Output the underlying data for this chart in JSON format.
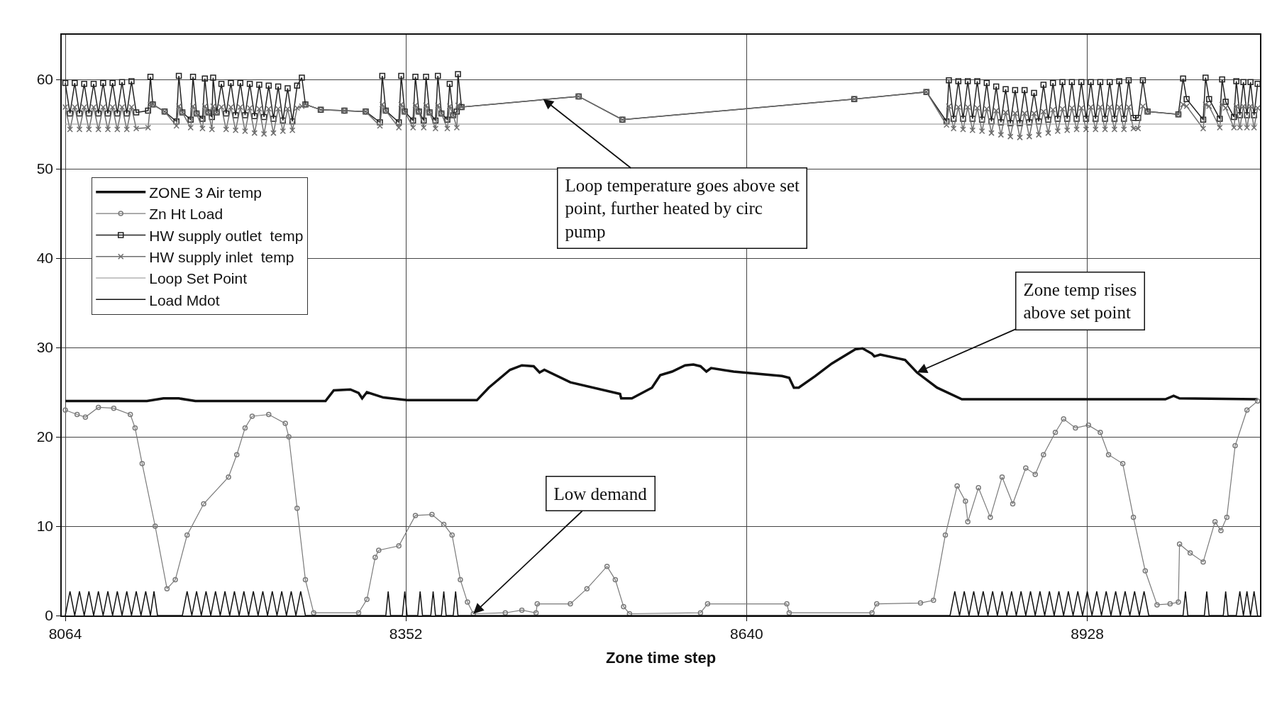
{
  "chart_data": {
    "type": "line",
    "xlabel": "Zone time step",
    "xlim": [
      8061,
      9074
    ],
    "xticks": [
      8064,
      8352,
      8640,
      8928
    ],
    "ylim": [
      0,
      65
    ],
    "yticks": [
      0,
      10,
      20,
      30,
      40,
      50,
      60
    ],
    "grid": true,
    "legend": "top left",
    "line_style": "solid",
    "annotations": [
      {
        "text": "Loop temperature goes above set point, further heated by circ pump",
        "x": 8468,
        "y": 57.8
      },
      {
        "text": "Zone temp rises above set point",
        "x": 8784,
        "y": 27.2
      },
      {
        "text": "Low demand",
        "x": 8409,
        "y": 0.2
      }
    ],
    "series": [
      {
        "name": "ZONE 3 Air temp",
        "color": "#111111",
        "marker": "none",
        "x": [
          8064,
          8133,
          8147,
          8160,
          8174,
          8284,
          8291,
          8305,
          8312,
          8315,
          8319,
          8333,
          8353,
          8412,
          8422,
          8440,
          8450,
          8460,
          8465,
          8469,
          8491,
          8533,
          8534,
          8543,
          8560,
          8567,
          8577,
          8588,
          8595,
          8601,
          8606,
          8610,
          8629,
          8670,
          8676,
          8680,
          8684,
          8698,
          8712,
          8732,
          8738,
          8746,
          8748,
          8753,
          8774,
          8784,
          8801,
          8822,
          8994,
          9001,
          9006,
          9072
        ],
        "values": [
          24,
          24,
          24.3,
          24.3,
          24,
          24,
          25.2,
          25.3,
          24.9,
          24.3,
          25,
          24.4,
          24.1,
          24.1,
          25.5,
          27.5,
          28,
          27.9,
          27.2,
          27.5,
          26.1,
          24.8,
          24.3,
          24.3,
          25.5,
          26.9,
          27.3,
          28,
          28.1,
          27.9,
          27.3,
          27.7,
          27.3,
          26.8,
          26.6,
          25.5,
          25.5,
          26.8,
          28.2,
          29.8,
          29.9,
          29.3,
          29,
          29.2,
          28.6,
          27.2,
          25.5,
          24.2,
          24.2,
          24.6,
          24.3,
          24.2
        ]
      },
      {
        "name": "Zn Ht Load",
        "color": "#7a7a7a",
        "marker": "circle",
        "x": [
          8064,
          8074,
          8081,
          8092,
          8105,
          8119,
          8123,
          8129,
          8140,
          8150,
          8157,
          8167,
          8181,
          8202,
          8209,
          8216,
          8222,
          8236,
          8250,
          8253,
          8260,
          8267,
          8274,
          8312,
          8319,
          8326,
          8329,
          8346,
          8360,
          8374,
          8384,
          8391,
          8398,
          8404,
          8409,
          8436,
          8450,
          8462,
          8463,
          8491,
          8505,
          8522,
          8529,
          8536,
          8541,
          8601,
          8607,
          8674,
          8676,
          8746,
          8750,
          8787,
          8798,
          8808,
          8818,
          8825,
          8827,
          8836,
          8846,
          8856,
          8865,
          8876,
          8884,
          8891,
          8901,
          8908,
          8918,
          8929,
          8939,
          8946,
          8958,
          8967,
          8977,
          8987,
          8998,
          9005,
          9006,
          9015,
          9026,
          9036,
          9041,
          9046,
          9053,
          9063,
          9072
        ],
        "values": [
          23,
          22.5,
          22.2,
          23.3,
          23.2,
          22.5,
          21,
          17,
          10,
          3,
          4,
          9,
          12.5,
          15.5,
          18,
          21,
          22.3,
          22.5,
          21.5,
          20,
          12,
          4,
          0.3,
          0.3,
          1.8,
          6.5,
          7.3,
          7.8,
          11.2,
          11.3,
          10.2,
          9,
          4,
          1.5,
          0.2,
          0.3,
          0.6,
          0.3,
          1.3,
          1.3,
          3,
          5.5,
          4,
          1,
          0.2,
          0.3,
          1.3,
          1.3,
          0.3,
          0.3,
          1.3,
          1.4,
          1.7,
          9,
          14.5,
          12.8,
          10.5,
          14.3,
          11,
          15.5,
          12.5,
          16.5,
          15.8,
          18,
          20.5,
          22,
          21,
          21.3,
          20.5,
          18,
          17,
          11,
          5,
          1.2,
          1.3,
          1.5,
          8,
          7,
          6,
          10.5,
          9.5,
          11,
          19,
          23,
          24
        ]
      },
      {
        "name": "HW supply outlet  temp",
        "color": "#222222",
        "marker": "square",
        "x": [
          8064,
          8068,
          8072,
          8076,
          8080,
          8084,
          8088,
          8092,
          8096,
          8100,
          8104,
          8108,
          8112,
          8116,
          8120,
          8124,
          8134,
          8136,
          8138,
          8148,
          8158,
          8160,
          8163,
          8170,
          8172,
          8175,
          8180,
          8182,
          8185,
          8188,
          8189,
          8192,
          8196,
          8200,
          8204,
          8208,
          8212,
          8216,
          8220,
          8224,
          8228,
          8232,
          8236,
          8240,
          8244,
          8248,
          8252,
          8256,
          8260,
          8264,
          8267,
          8280,
          8300,
          8318,
          8330,
          8332,
          8335,
          8346,
          8348,
          8351,
          8358,
          8360,
          8363,
          8367,
          8369,
          8372,
          8377,
          8379,
          8382,
          8387,
          8389,
          8392,
          8395,
          8396,
          8399,
          8498,
          8535,
          8731,
          8792,
          8809,
          8811,
          8815,
          8819,
          8823,
          8827,
          8831,
          8835,
          8839,
          8843,
          8847,
          8851,
          8855,
          8859,
          8863,
          8867,
          8871,
          8875,
          8879,
          8883,
          8887,
          8891,
          8895,
          8899,
          8903,
          8907,
          8911,
          8915,
          8919,
          8923,
          8927,
          8931,
          8935,
          8939,
          8943,
          8947,
          8951,
          8955,
          8959,
          8963,
          8967,
          8971,
          8975,
          8979,
          9005,
          9009,
          9012,
          9026,
          9028,
          9031,
          9040,
          9042,
          9045,
          9052,
          9054,
          9057,
          9060,
          9063,
          9066,
          9069,
          9072
        ],
        "values": [
          59.6,
          56.2,
          59.6,
          56.2,
          59.5,
          56.2,
          59.5,
          56.2,
          59.6,
          56.2,
          59.6,
          56.2,
          59.7,
          56.2,
          59.8,
          56.3,
          56.5,
          60.3,
          57.2,
          56.4,
          55.3,
          60.4,
          56.3,
          55.5,
          60.3,
          56.2,
          55.6,
          60.1,
          56.3,
          55.8,
          60.2,
          56.3,
          59.5,
          56.2,
          59.6,
          56,
          59.6,
          56,
          59.5,
          55.9,
          59.4,
          55.8,
          59.3,
          55.6,
          59.2,
          55.4,
          59,
          55.3,
          59.3,
          60.2,
          57.2,
          56.6,
          56.5,
          56.4,
          55.2,
          60.4,
          56.5,
          55.2,
          60.4,
          56.4,
          55.4,
          60.3,
          56.4,
          55.4,
          60.3,
          56.3,
          55.4,
          60.4,
          56.2,
          55.5,
          59.5,
          56,
          56.4,
          60.6,
          56.9,
          58.1,
          55.5,
          57.8,
          58.6,
          55.3,
          59.9,
          55.6,
          59.8,
          55.6,
          59.8,
          55.6,
          59.8,
          55.5,
          59.6,
          55.3,
          59.2,
          55.2,
          58.9,
          55.1,
          58.8,
          55.1,
          58.8,
          55.2,
          58.5,
          55.3,
          59.4,
          55.5,
          59.6,
          55.6,
          59.7,
          55.6,
          59.7,
          55.6,
          59.7,
          55.6,
          59.7,
          55.6,
          59.7,
          55.6,
          59.7,
          55.6,
          59.8,
          55.6,
          59.9,
          55.7,
          55.7,
          59.9,
          56.4,
          56.1,
          60.1,
          57.8,
          55.5,
          60.2,
          57.8,
          55.6,
          60,
          57.5,
          55.8,
          59.8,
          56,
          59.7,
          56,
          59.7,
          56,
          59.5
        ]
      },
      {
        "name": "HW supply inlet  temp",
        "color": "#6e6e6e",
        "marker": "cross",
        "x": [
          8064,
          8068,
          8072,
          8076,
          8080,
          8084,
          8088,
          8092,
          8096,
          8100,
          8104,
          8108,
          8112,
          8116,
          8120,
          8124,
          8134,
          8136,
          8138,
          8148,
          8158,
          8160,
          8163,
          8170,
          8172,
          8175,
          8180,
          8182,
          8185,
          8188,
          8189,
          8192,
          8196,
          8200,
          8204,
          8208,
          8212,
          8216,
          8220,
          8224,
          8228,
          8232,
          8236,
          8240,
          8244,
          8248,
          8252,
          8256,
          8260,
          8264,
          8267,
          8280,
          8300,
          8318,
          8330,
          8332,
          8335,
          8346,
          8348,
          8351,
          8358,
          8360,
          8363,
          8367,
          8369,
          8372,
          8377,
          8379,
          8382,
          8387,
          8389,
          8392,
          8395,
          8396,
          8399,
          8498,
          8535,
          8731,
          8792,
          8809,
          8811,
          8815,
          8819,
          8823,
          8827,
          8831,
          8835,
          8839,
          8843,
          8847,
          8851,
          8855,
          8859,
          8863,
          8867,
          8871,
          8875,
          8879,
          8883,
          8887,
          8891,
          8895,
          8899,
          8903,
          8907,
          8911,
          8915,
          8919,
          8923,
          8927,
          8931,
          8935,
          8939,
          8943,
          8947,
          8951,
          8955,
          8959,
          8963,
          8967,
          8971,
          8975,
          8979,
          9005,
          9009,
          9012,
          9026,
          9028,
          9031,
          9040,
          9042,
          9045,
          9052,
          9054,
          9057,
          9060,
          9063,
          9066,
          9069,
          9072
        ],
        "values": [
          56.9,
          54.4,
          56.9,
          54.4,
          56.9,
          54.4,
          56.9,
          54.4,
          56.9,
          54.4,
          56.9,
          54.4,
          56.9,
          54.4,
          56.9,
          54.5,
          54.6,
          57.2,
          57.2,
          56.4,
          54.8,
          57,
          56.3,
          54.6,
          57,
          56.2,
          54.5,
          57,
          56.3,
          54.4,
          57,
          56.3,
          56.9,
          54.4,
          56.9,
          54.3,
          56.9,
          54.2,
          56.8,
          54,
          56.7,
          53.9,
          56.7,
          54,
          56.7,
          54.2,
          56.7,
          54.3,
          56.8,
          57,
          57.2,
          56.6,
          56.5,
          56.4,
          54.8,
          57.2,
          56.5,
          54.6,
          57.2,
          56.4,
          54.6,
          57.1,
          56.4,
          54.6,
          57.1,
          56.3,
          54.5,
          57.1,
          56.2,
          54.5,
          57,
          56,
          54.6,
          57.1,
          56.9,
          58.1,
          55.5,
          57.8,
          58.6,
          54.9,
          57,
          54.5,
          56.9,
          54.4,
          56.9,
          54.3,
          56.8,
          54.2,
          56.7,
          54,
          56.5,
          53.8,
          56.3,
          53.6,
          56.2,
          53.5,
          56.2,
          53.6,
          56.2,
          53.8,
          56.4,
          54,
          56.6,
          54.2,
          56.7,
          54.3,
          56.8,
          54.4,
          56.8,
          54.4,
          56.9,
          54.4,
          56.9,
          54.4,
          56.9,
          54.4,
          56.9,
          54.4,
          56.9,
          54.5,
          54.5,
          57,
          56.4,
          56.1,
          57.2,
          57,
          54.5,
          57.2,
          57,
          54.6,
          57.2,
          56.8,
          54.6,
          57,
          54.6,
          57,
          54.6,
          57,
          54.6,
          56.8
        ]
      },
      {
        "name": "Loop Set Point",
        "color": "#8c8c8c",
        "marker": "none",
        "x": [
          8064,
          9072
        ],
        "values": [
          55,
          55
        ]
      },
      {
        "name": "Load Mdot",
        "color": "#111111",
        "marker": "none",
        "x": [
          8064,
          8068,
          8072,
          8076,
          8080,
          8084,
          8088,
          8092,
          8096,
          8100,
          8104,
          8108,
          8112,
          8116,
          8120,
          8124,
          8128,
          8132,
          8136,
          8139,
          8142,
          8163,
          8167,
          8171,
          8175,
          8179,
          8183,
          8187,
          8191,
          8195,
          8199,
          8203,
          8207,
          8211,
          8215,
          8219,
          8223,
          8227,
          8231,
          8235,
          8239,
          8243,
          8247,
          8251,
          8255,
          8259,
          8263,
          8267,
          8335,
          8337,
          8339,
          8349,
          8351,
          8353,
          8362,
          8364,
          8366,
          8373,
          8375,
          8377,
          8382,
          8384,
          8386,
          8392,
          8394,
          8396,
          8812,
          8816,
          8820,
          8824,
          8828,
          8832,
          8836,
          8840,
          8844,
          8848,
          8852,
          8856,
          8860,
          8864,
          8868,
          8872,
          8876,
          8880,
          8884,
          8888,
          8892,
          8896,
          8900,
          8904,
          8908,
          8912,
          8916,
          8920,
          8924,
          8928,
          8932,
          8936,
          8940,
          8944,
          8948,
          8952,
          8956,
          8960,
          8964,
          8968,
          8972,
          8976,
          8980,
          9009,
          9011,
          9013,
          9027,
          9029,
          9031,
          9043,
          9045,
          9047,
          9054,
          9057,
          9060,
          9063,
          9066,
          9069,
          9072
        ],
        "values": [
          0,
          2.7,
          0,
          2.7,
          0,
          2.7,
          0,
          2.7,
          0,
          2.7,
          0,
          2.7,
          0,
          2.7,
          0,
          2.7,
          0,
          2.7,
          0,
          2.7,
          0,
          0,
          2.7,
          0,
          2.7,
          0,
          2.7,
          0,
          2.7,
          0,
          2.7,
          0,
          2.7,
          0,
          2.7,
          0,
          2.7,
          0,
          2.7,
          0,
          2.7,
          0,
          2.7,
          0,
          2.7,
          0,
          2.7,
          0,
          0,
          2.7,
          0,
          0,
          2.7,
          0,
          0,
          2.7,
          0,
          0,
          2.7,
          0,
          0,
          2.7,
          0,
          0,
          2.7,
          0,
          0,
          2.7,
          0,
          2.7,
          0,
          2.7,
          0,
          2.7,
          0,
          2.7,
          0,
          2.7,
          0,
          2.7,
          0,
          2.7,
          0,
          2.7,
          0,
          2.7,
          0,
          2.7,
          0,
          2.7,
          0,
          2.7,
          0,
          2.7,
          0,
          2.7,
          0,
          2.7,
          0,
          2.7,
          0,
          2.7,
          0,
          2.7,
          0,
          2.7,
          0,
          2.7,
          0,
          0,
          2.7,
          0,
          0,
          2.7,
          0,
          0,
          2.7,
          0,
          0,
          2.7,
          0,
          2.7,
          0,
          2.7,
          0
        ]
      }
    ]
  }
}
